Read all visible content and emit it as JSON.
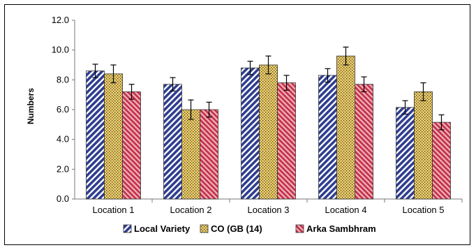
{
  "chart_data": {
    "type": "bar",
    "title": "",
    "xlabel": "",
    "ylabel": "Numbers",
    "ylim": [
      0,
      12
    ],
    "ytick_step": 2,
    "ytick_labels": [
      "0.0",
      "2.0",
      "4.0",
      "6.0",
      "8.0",
      "10.0",
      "12.0"
    ],
    "grid": false,
    "legend_position": "bottom",
    "categories": [
      "Location 1",
      "Location 2",
      "Location 3",
      "Location 4",
      "Location 5"
    ],
    "series": [
      {
        "name": "Local Variety",
        "values": [
          8.6,
          7.7,
          8.8,
          8.3,
          6.15
        ],
        "error": [
          0.45,
          0.45,
          0.45,
          0.45,
          0.45
        ],
        "color": "#2e3d8f",
        "pattern": "diagonal-stripes-navy"
      },
      {
        "name": "CO (GB (14)",
        "values": [
          8.4,
          6.0,
          9.0,
          9.6,
          7.2
        ],
        "error": [
          0.6,
          0.65,
          0.6,
          0.6,
          0.6
        ],
        "color": "#e8c55a",
        "pattern": "dotted-yellow"
      },
      {
        "name": "Arka Sambhram",
        "values": [
          7.2,
          6.0,
          7.8,
          7.7,
          5.15
        ],
        "error": [
          0.5,
          0.5,
          0.5,
          0.5,
          0.5
        ],
        "color": "#c2334a",
        "pattern": "diagonal-stripes-red"
      }
    ]
  }
}
